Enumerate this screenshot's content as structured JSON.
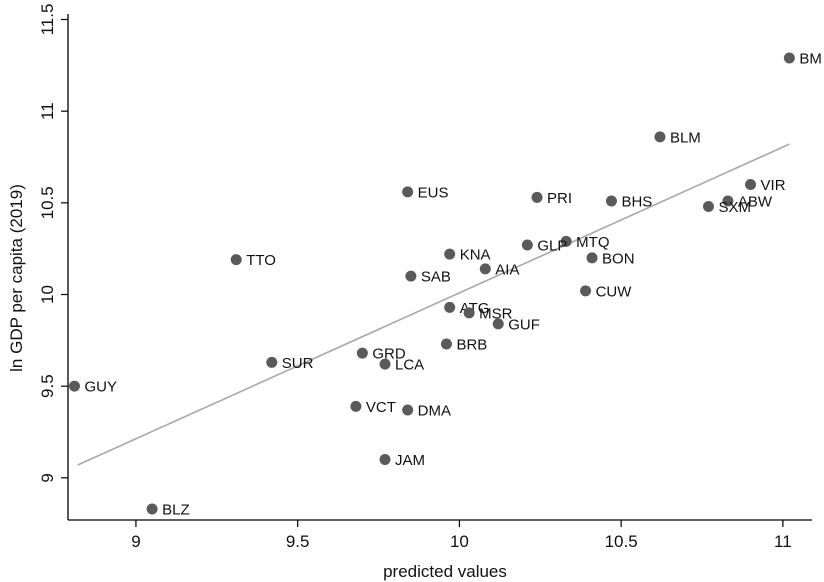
{
  "chart_data": {
    "type": "scatter",
    "xlabel": "predicted values",
    "ylabel": "ln GDP per capita (2019)",
    "xlim": [
      8.79,
      11.09
    ],
    "ylim": [
      8.77,
      11.53
    ],
    "xticks": [
      9,
      9.5,
      10,
      10.5,
      11
    ],
    "xtick_labels": [
      "9",
      "9.5",
      "10",
      "10.5",
      "11"
    ],
    "yticks": [
      9,
      9.5,
      10,
      10.5,
      11,
      11.5
    ],
    "ytick_labels": [
      "9",
      "9.5",
      "10",
      "10.5",
      "11",
      "11.5"
    ],
    "grid": false,
    "legend": "none",
    "marker_color": "#5a5a5a",
    "fit_line_color": "#a8a8a8",
    "fit_line": {
      "x": [
        8.82,
        11.02
      ],
      "y": [
        9.07,
        10.82
      ]
    },
    "points": [
      {
        "label": "BM",
        "x": 11.02,
        "y": 11.29
      },
      {
        "label": "BLM",
        "x": 10.62,
        "y": 10.86
      },
      {
        "label": "VIR",
        "x": 10.9,
        "y": 10.6
      },
      {
        "label": "ABW",
        "x": 10.83,
        "y": 10.51
      },
      {
        "label": "SXM",
        "x": 10.77,
        "y": 10.48
      },
      {
        "label": "BHS",
        "x": 10.47,
        "y": 10.51
      },
      {
        "label": "PRI",
        "x": 10.24,
        "y": 10.53
      },
      {
        "label": "EUS",
        "x": 9.84,
        "y": 10.56
      },
      {
        "label": "MTQ",
        "x": 10.33,
        "y": 10.29
      },
      {
        "label": "GLP",
        "x": 10.21,
        "y": 10.27
      },
      {
        "label": "BON",
        "x": 10.41,
        "y": 10.2
      },
      {
        "label": "KNA",
        "x": 9.97,
        "y": 10.22
      },
      {
        "label": "AIA",
        "x": 10.08,
        "y": 10.14
      },
      {
        "label": "SAB",
        "x": 9.85,
        "y": 10.1
      },
      {
        "label": "CUW",
        "x": 10.39,
        "y": 10.02
      },
      {
        "label": "ATG",
        "x": 9.97,
        "y": 9.93
      },
      {
        "label": "MSR",
        "x": 10.03,
        "y": 9.9
      },
      {
        "label": "GUF",
        "x": 10.12,
        "y": 9.84
      },
      {
        "label": "BRB",
        "x": 9.96,
        "y": 9.73
      },
      {
        "label": "TTO",
        "x": 9.31,
        "y": 10.19
      },
      {
        "label": "GRD",
        "x": 9.7,
        "y": 9.68
      },
      {
        "label": "LCA",
        "x": 9.77,
        "y": 9.62
      },
      {
        "label": "SUR",
        "x": 9.42,
        "y": 9.63
      },
      {
        "label": "VCT",
        "x": 9.68,
        "y": 9.39
      },
      {
        "label": "DMA",
        "x": 9.84,
        "y": 9.37
      },
      {
        "label": "JAM",
        "x": 9.77,
        "y": 9.1
      },
      {
        "label": "GUY",
        "x": 8.81,
        "y": 9.5
      },
      {
        "label": "BLZ",
        "x": 9.05,
        "y": 8.83
      }
    ]
  }
}
